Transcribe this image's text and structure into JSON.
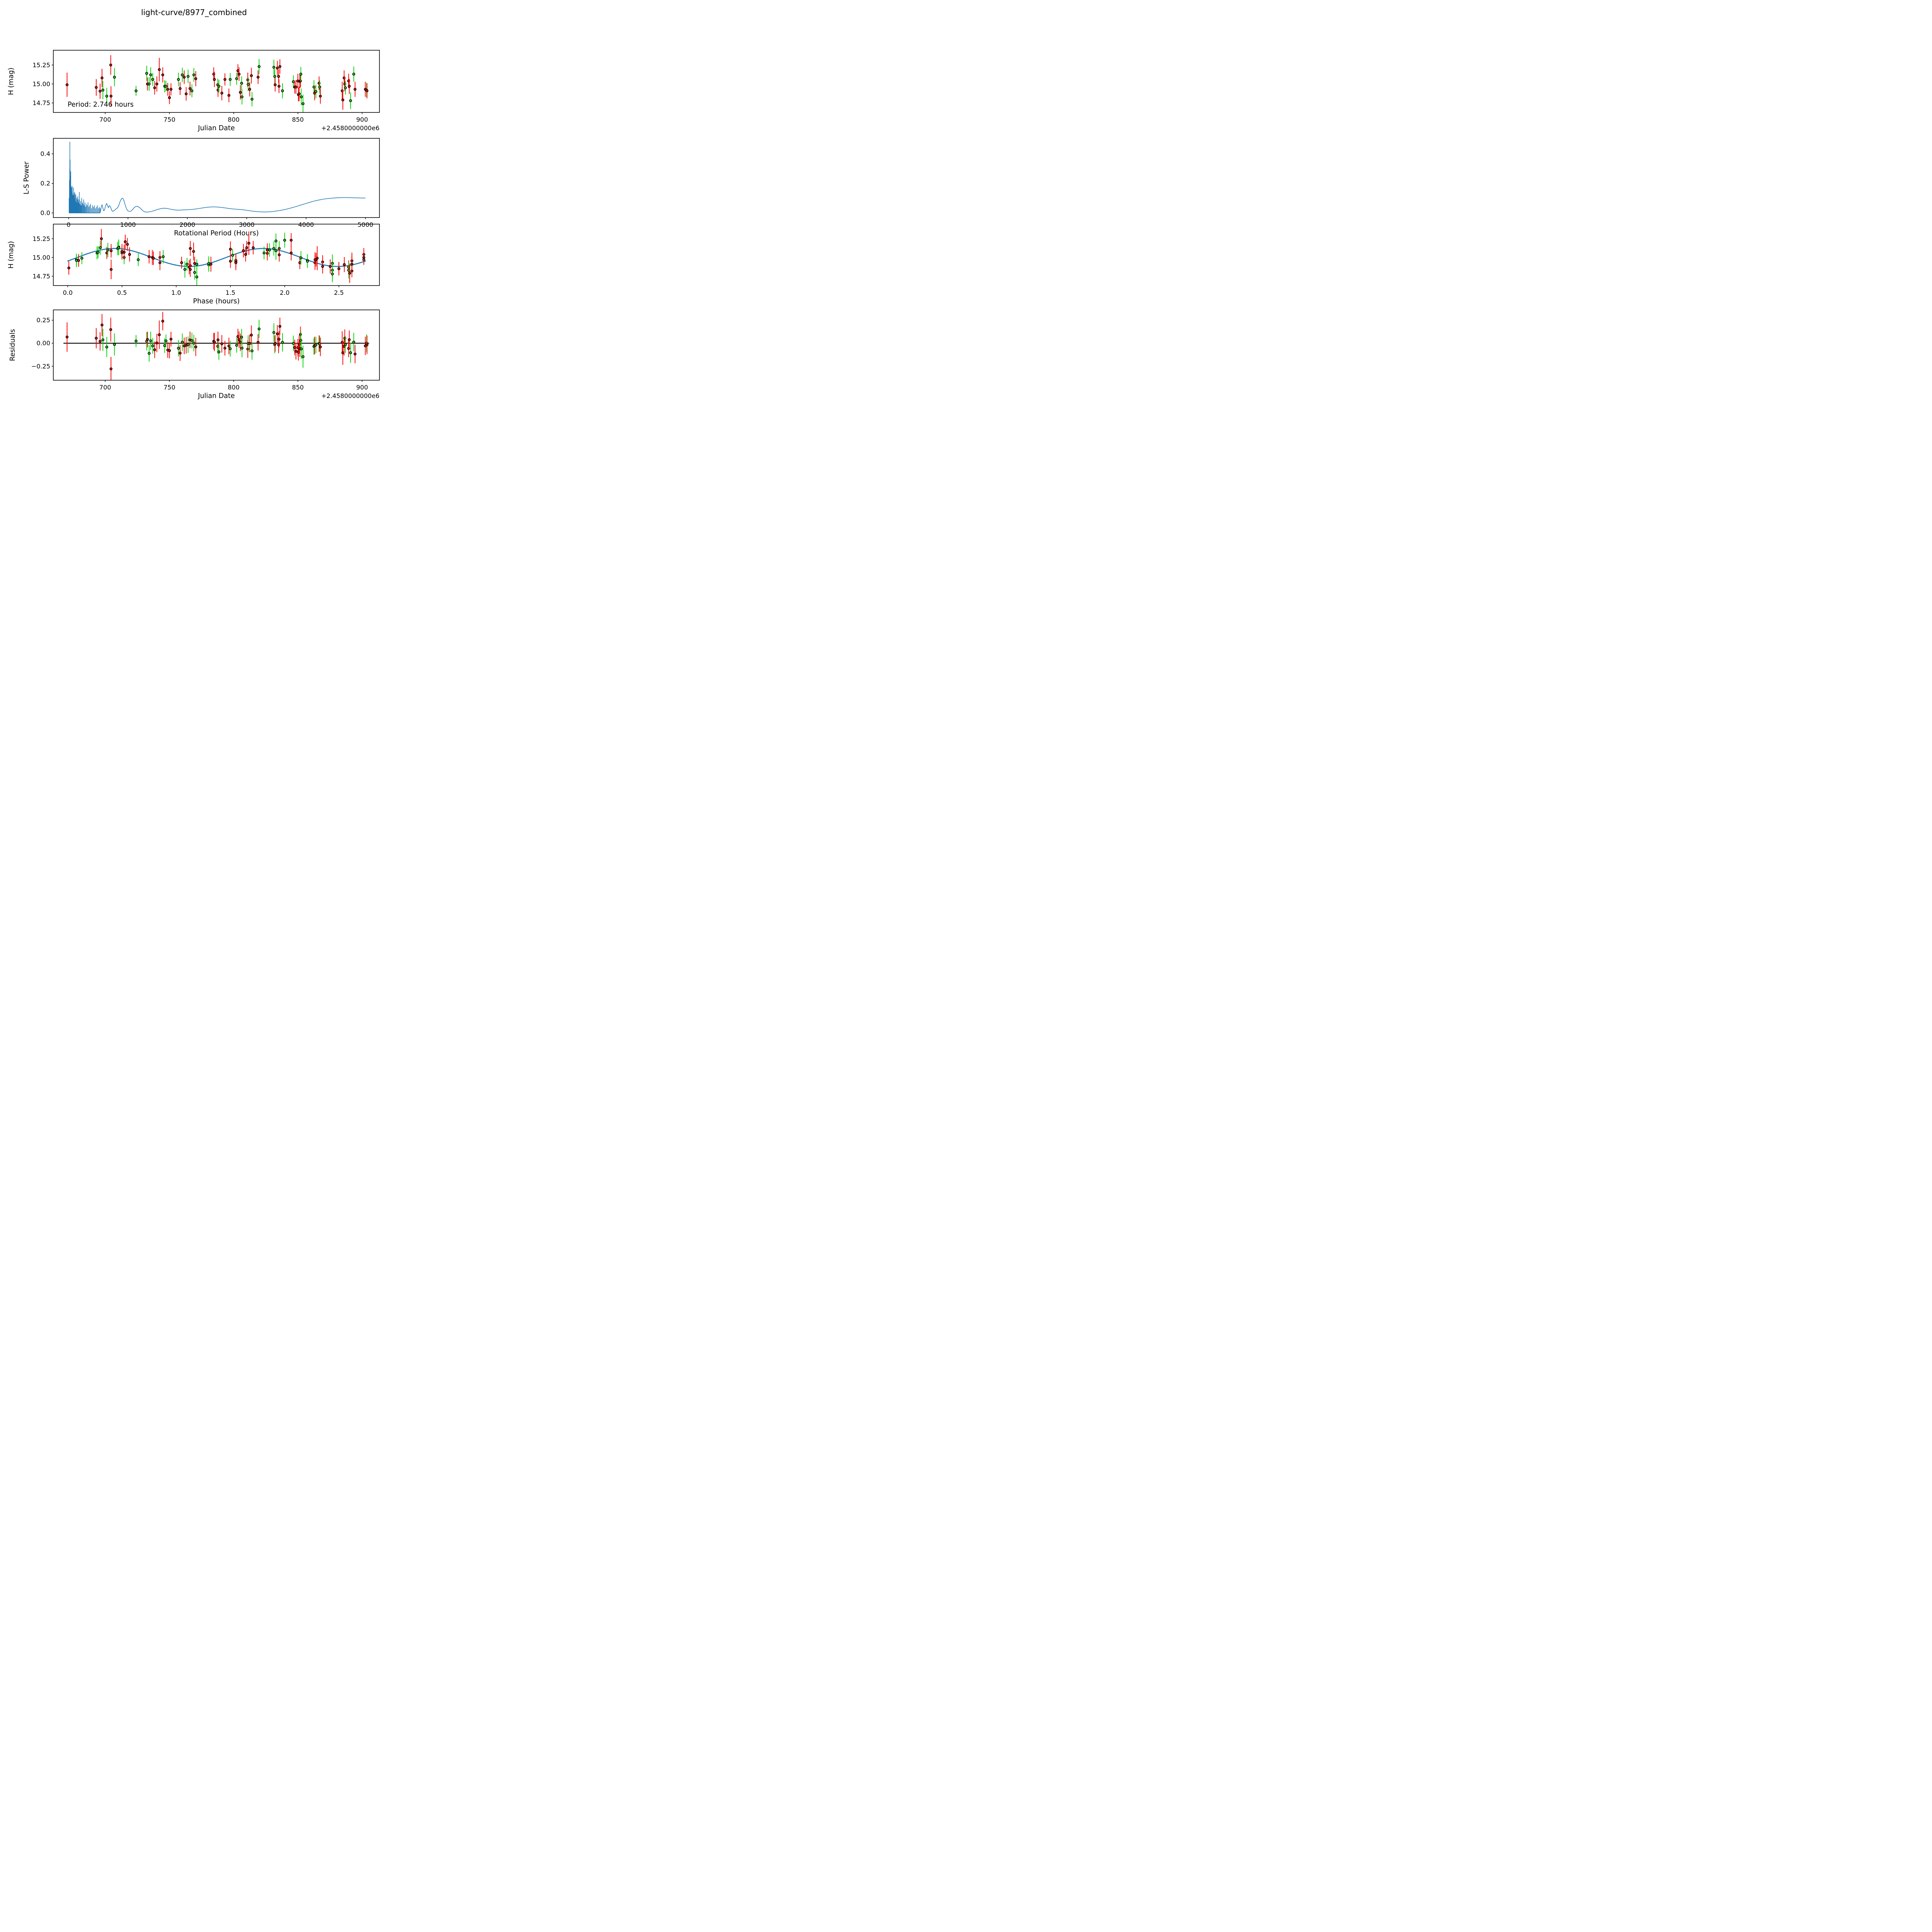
{
  "title": "light-curve/8977_combined",
  "colors": {
    "curve_blue": "#1f77b4",
    "red_marker": "#ee1111",
    "red_errorbar": "#ff0000",
    "green_marker": "#2fd32f",
    "green_errorbar": "#00d400",
    "marker_edge": "#000000",
    "zero_line": "#000000",
    "axis": "#000000"
  },
  "chart_data": [
    {
      "id": "jd-mag",
      "type": "scatter",
      "title": "",
      "xlabel": "Julian Date",
      "ylabel": "H (mag)",
      "x_offset_label": "+2.4580000000e6",
      "annotation": "Period: 2.746 hours",
      "xlim": [
        659.6,
        913.5
      ],
      "ylim": [
        15.445,
        14.625
      ],
      "xticks": [
        [
          700,
          "700"
        ],
        [
          750,
          "750"
        ],
        [
          800,
          "800"
        ],
        [
          850,
          "850"
        ],
        [
          900,
          "900"
        ]
      ],
      "yticks": [
        [
          15.25,
          "15.25"
        ],
        [
          15.0,
          "15.00"
        ],
        [
          14.75,
          "14.75"
        ]
      ],
      "grid": false,
      "series_note": "two error-bar datasets (red, green), x=JD-2458000, y=H magnitude"
    },
    {
      "id": "periodogram",
      "type": "line",
      "xlabel": "Rotational Period (Hours)",
      "ylabel": "L-S Power",
      "xlim": [
        -258,
        5236
      ],
      "ylim": [
        0.505,
        -0.031
      ],
      "xticks": [
        [
          0,
          "0"
        ],
        [
          1000,
          "1000"
        ],
        [
          2000,
          "2000"
        ],
        [
          3000,
          "3000"
        ],
        [
          4000,
          "4000"
        ],
        [
          5000,
          "5000"
        ]
      ],
      "yticks": [
        [
          0.0,
          "0.0"
        ],
        [
          0.2,
          "0.2"
        ],
        [
          0.4,
          "0.4"
        ]
      ],
      "grid": false,
      "spikes": [
        [
          8,
          0.1
        ],
        [
          11,
          0.05
        ],
        [
          13,
          0.22
        ],
        [
          15,
          0.12
        ],
        [
          18,
          0.3
        ],
        [
          20,
          0.48
        ],
        [
          22,
          0.2
        ],
        [
          25,
          0.36
        ],
        [
          27,
          0.15
        ],
        [
          30,
          0.25
        ],
        [
          33,
          0.17
        ],
        [
          36,
          0.28
        ],
        [
          39,
          0.12
        ],
        [
          43,
          0.18
        ],
        [
          47,
          0.1
        ],
        [
          50,
          0.17
        ],
        [
          54,
          0.12
        ],
        [
          58,
          0.14
        ],
        [
          62,
          0.18
        ],
        [
          66,
          0.1
        ],
        [
          70,
          0.12
        ],
        [
          74,
          0.08
        ],
        [
          78,
          0.13
        ],
        [
          83,
          0.17
        ],
        [
          88,
          0.09
        ],
        [
          93,
          0.12
        ],
        [
          98,
          0.14
        ],
        [
          104,
          0.1
        ],
        [
          110,
          0.13
        ],
        [
          116,
          0.08
        ],
        [
          123,
          0.12
        ],
        [
          130,
          0.07
        ],
        [
          137,
          0.1
        ],
        [
          145,
          0.09
        ],
        [
          153,
          0.11
        ],
        [
          161,
          0.07
        ],
        [
          170,
          0.09
        ],
        [
          180,
          0.14
        ],
        [
          190,
          0.06
        ],
        [
          200,
          0.08
        ],
        [
          210,
          0.05
        ],
        [
          220,
          0.1
        ],
        [
          231,
          0.07
        ],
        [
          242,
          0.06
        ],
        [
          253,
          0.09
        ],
        [
          264,
          0.05
        ],
        [
          275,
          0.07
        ],
        [
          287,
          0.04
        ],
        [
          299,
          0.06
        ],
        [
          312,
          0.05
        ],
        [
          326,
          0.07
        ],
        [
          340,
          0.04
        ],
        [
          355,
          0.05
        ],
        [
          370,
          0.06
        ],
        [
          386,
          0.03
        ],
        [
          402,
          0.05
        ],
        [
          418,
          0.04
        ],
        [
          434,
          0.05
        ],
        [
          450,
          0.03
        ],
        [
          467,
          0.04
        ],
        [
          484,
          0.05
        ],
        [
          500,
          0.03
        ],
        [
          516,
          0.04
        ],
        [
          530,
          0.03
        ]
      ],
      "curve": [
        [
          540,
          0.02
        ],
        [
          555,
          0.05
        ],
        [
          565,
          0.055
        ],
        [
          575,
          0.035
        ],
        [
          590,
          0.015
        ],
        [
          605,
          0.02
        ],
        [
          620,
          0.045
        ],
        [
          640,
          0.065
        ],
        [
          655,
          0.05
        ],
        [
          670,
          0.035
        ],
        [
          685,
          0.05
        ],
        [
          700,
          0.045
        ],
        [
          715,
          0.03
        ],
        [
          730,
          0.015
        ],
        [
          745,
          0.01
        ],
        [
          760,
          0.015
        ],
        [
          780,
          0.02
        ],
        [
          800,
          0.028
        ],
        [
          820,
          0.034
        ],
        [
          840,
          0.045
        ],
        [
          860,
          0.07
        ],
        [
          880,
          0.09
        ],
        [
          900,
          0.1
        ],
        [
          915,
          0.098
        ],
        [
          930,
          0.085
        ],
        [
          945,
          0.065
        ],
        [
          960,
          0.045
        ],
        [
          975,
          0.028
        ],
        [
          990,
          0.018
        ],
        [
          1010,
          0.012
        ],
        [
          1030,
          0.01
        ],
        [
          1050,
          0.013
        ],
        [
          1075,
          0.022
        ],
        [
          1100,
          0.034
        ],
        [
          1130,
          0.044
        ],
        [
          1160,
          0.045
        ],
        [
          1190,
          0.038
        ],
        [
          1220,
          0.027
        ],
        [
          1250,
          0.015
        ],
        [
          1280,
          0.008
        ],
        [
          1310,
          0.006
        ],
        [
          1350,
          0.007
        ],
        [
          1400,
          0.011
        ],
        [
          1450,
          0.017
        ],
        [
          1500,
          0.024
        ],
        [
          1550,
          0.029
        ],
        [
          1600,
          0.032
        ],
        [
          1650,
          0.031
        ],
        [
          1700,
          0.027
        ],
        [
          1750,
          0.023
        ],
        [
          1800,
          0.02
        ],
        [
          1850,
          0.019
        ],
        [
          1900,
          0.02
        ],
        [
          1950,
          0.021
        ],
        [
          2000,
          0.022
        ],
        [
          2080,
          0.024
        ],
        [
          2160,
          0.028
        ],
        [
          2240,
          0.033
        ],
        [
          2320,
          0.038
        ],
        [
          2400,
          0.041
        ],
        [
          2480,
          0.041
        ],
        [
          2560,
          0.038
        ],
        [
          2640,
          0.034
        ],
        [
          2720,
          0.029
        ],
        [
          2800,
          0.026
        ],
        [
          2880,
          0.024
        ],
        [
          2950,
          0.021
        ],
        [
          3020,
          0.017
        ],
        [
          3100,
          0.012
        ],
        [
          3180,
          0.009
        ],
        [
          3260,
          0.007
        ],
        [
          3340,
          0.007
        ],
        [
          3420,
          0.009
        ],
        [
          3500,
          0.013
        ],
        [
          3580,
          0.018
        ],
        [
          3660,
          0.025
        ],
        [
          3740,
          0.033
        ],
        [
          3820,
          0.042
        ],
        [
          3900,
          0.052
        ],
        [
          3980,
          0.062
        ],
        [
          4060,
          0.072
        ],
        [
          4140,
          0.081
        ],
        [
          4220,
          0.088
        ],
        [
          4300,
          0.094
        ],
        [
          4380,
          0.098
        ],
        [
          4460,
          0.101
        ],
        [
          4540,
          0.103
        ],
        [
          4620,
          0.104
        ],
        [
          4700,
          0.104
        ],
        [
          4780,
          0.103
        ],
        [
          4860,
          0.102
        ],
        [
          4940,
          0.101
        ],
        [
          5000,
          0.101
        ]
      ]
    },
    {
      "id": "phase-mag",
      "type": "scatter+line",
      "xlabel": "Phase (hours)",
      "ylabel": "H (mag)",
      "xlim": [
        -0.133,
        2.874
      ],
      "ylim": [
        15.445,
        14.625
      ],
      "xticks": [
        [
          0.0,
          "0.0"
        ],
        [
          0.5,
          "0.5"
        ],
        [
          1.0,
          "1.0"
        ],
        [
          1.5,
          "1.5"
        ],
        [
          2.0,
          "2.0"
        ],
        [
          2.5,
          "2.5"
        ]
      ],
      "yticks": [
        [
          15.25,
          "15.25"
        ],
        [
          15.0,
          "15.00"
        ],
        [
          14.75,
          "14.75"
        ]
      ],
      "grid": false,
      "fit": {
        "mean": 15.0,
        "amplitude": 0.12,
        "sine_period_hours": 1.373,
        "phase_zero": 0.088,
        "range": [
          0.0,
          2.75
        ]
      }
    },
    {
      "id": "residuals",
      "type": "scatter",
      "xlabel": "Julian Date",
      "ylabel": "Residuals",
      "x_offset_label": "+2.4580000000e6",
      "xlim": [
        659.6,
        913.5
      ],
      "ylim": [
        0.362,
        -0.402
      ],
      "xticks": [
        [
          700,
          "700"
        ],
        [
          750,
          "750"
        ],
        [
          800,
          "800"
        ],
        [
          850,
          "850"
        ],
        [
          900,
          "900"
        ]
      ],
      "yticks": [
        [
          0.25,
          "0.25"
        ],
        [
          0.0,
          "0.00"
        ],
        [
          -0.25,
          "−0.25"
        ]
      ],
      "grid": false,
      "zero_line_span": [
        667.5,
        905.5
      ]
    }
  ],
  "observations": [
    [
      670.3,
      2.3,
      14.99,
      0.16,
      "r"
    ],
    [
      693.0,
      2.62,
      14.955,
      0.11,
      "r"
    ],
    [
      696.0,
      2.55,
      14.905,
      0.1,
      "r"
    ],
    [
      697.5,
      1.16,
      15.08,
      0.12,
      "r"
    ],
    [
      698.2,
      2.44,
      14.92,
      0.12,
      "g"
    ],
    [
      701.2,
      1.08,
      14.84,
      0.11,
      "g"
    ],
    [
      704.3,
      0.31,
      15.25,
      0.13,
      "r"
    ],
    [
      704.5,
      0.4,
      14.84,
      0.13,
      "r"
    ],
    [
      707.2,
      1.92,
      15.09,
      0.12,
      "g"
    ],
    [
      724.0,
      1.19,
      14.91,
      0.065,
      "g"
    ],
    [
      732.3,
      0.47,
      15.14,
      0.1,
      "g"
    ],
    [
      732.9,
      0.85,
      15.0,
      0.085,
      "r"
    ],
    [
      734.2,
      0.52,
      15.0,
      0.09,
      "g"
    ],
    [
      735.4,
      1.95,
      15.12,
      0.1,
      "g"
    ],
    [
      737.0,
      0.27,
      15.06,
      0.085,
      "g"
    ],
    [
      738.5,
      1.5,
      14.95,
      0.09,
      "r"
    ],
    [
      740.2,
      0.78,
      15.0,
      0.1,
      "r"
    ],
    [
      742.1,
      1.67,
      15.19,
      0.155,
      "r"
    ],
    [
      744.8,
      1.13,
      15.12,
      0.1,
      "r"
    ],
    [
      746.3,
      0.08,
      14.97,
      0.08,
      "g"
    ],
    [
      747.3,
      2.73,
      14.97,
      0.07,
      "g"
    ],
    [
      748.7,
      2.14,
      14.93,
      0.085,
      "r"
    ],
    [
      750.0,
      2.62,
      14.82,
      0.085,
      "r"
    ],
    [
      751.2,
      1.05,
      14.93,
      0.08,
      "r"
    ],
    [
      757.0,
      0.5,
      15.06,
      0.09,
      "g"
    ],
    [
      758.3,
      1.55,
      14.94,
      0.085,
      "r"
    ],
    [
      760.0,
      1.9,
      15.12,
      0.095,
      "g"
    ],
    [
      761.5,
      0.4,
      15.09,
      0.09,
      "r"
    ],
    [
      763.0,
      2.59,
      14.87,
      0.09,
      "r"
    ],
    [
      764.5,
      1.86,
      15.1,
      0.09,
      "g"
    ],
    [
      766.0,
      2.35,
      14.94,
      0.09,
      "r"
    ],
    [
      767.5,
      1.1,
      14.91,
      0.085,
      "g"
    ],
    [
      769.0,
      0.46,
      15.12,
      0.09,
      "g"
    ],
    [
      770.5,
      0.52,
      15.07,
      0.1,
      "r"
    ],
    [
      784.5,
      1.71,
      15.13,
      0.09,
      "r"
    ],
    [
      785.0,
      2.06,
      15.06,
      0.1,
      "r"
    ],
    [
      787.6,
      0.13,
      14.99,
      0.08,
      "g"
    ],
    [
      787.8,
      1.17,
      14.92,
      0.09,
      "r"
    ],
    [
      788.5,
      0.65,
      14.97,
      0.085,
      "g"
    ],
    [
      790.8,
      2.42,
      14.88,
      0.095,
      "r"
    ],
    [
      793.2,
      0.36,
      15.06,
      0.08,
      "r"
    ],
    [
      796.3,
      2.5,
      14.85,
      0.09,
      "r"
    ],
    [
      797.3,
      1.81,
      15.06,
      0.085,
      "g"
    ],
    [
      802.3,
      0.28,
      15.07,
      0.08,
      "g"
    ],
    [
      803.3,
      0.55,
      15.175,
      0.085,
      "r"
    ],
    [
      804.2,
      1.65,
      15.13,
      0.09,
      "r"
    ],
    [
      805.2,
      1.13,
      14.89,
      0.095,
      "r"
    ],
    [
      806.2,
      0.88,
      15.01,
      0.09,
      "g"
    ],
    [
      806.5,
      2.44,
      14.83,
      0.1,
      "g"
    ],
    [
      811.0,
      1.84,
      15.055,
      0.095,
      "r"
    ],
    [
      811.3,
      2.15,
      14.995,
      0.09,
      "g"
    ],
    [
      812.5,
      2.28,
      14.93,
      0.095,
      "r"
    ],
    [
      813.8,
      1.5,
      15.11,
      0.105,
      "r"
    ],
    [
      814.3,
      1.17,
      14.8,
      0.095,
      "g"
    ],
    [
      819.0,
      1.62,
      15.09,
      0.09,
      "r"
    ],
    [
      819.8,
      2.0,
      15.23,
      0.1,
      "g"
    ],
    [
      831.3,
      1.92,
      15.22,
      0.1,
      "g"
    ],
    [
      832.0,
      0.37,
      15.1,
      0.095,
      "g"
    ],
    [
      832.3,
      0.79,
      14.99,
      0.09,
      "r"
    ],
    [
      834.0,
      0.53,
      15.21,
      0.095,
      "r"
    ],
    [
      835.0,
      1.84,
      15.1,
      0.09,
      "r"
    ],
    [
      835.3,
      2.29,
      14.97,
      0.09,
      "r"
    ],
    [
      836.0,
      2.06,
      15.23,
      0.095,
      "r"
    ],
    [
      838.0,
      2.62,
      14.91,
      0.1,
      "g"
    ],
    [
      846.5,
      1.52,
      15.03,
      0.085,
      "g"
    ],
    [
      847.5,
      0.1,
      14.96,
      0.085,
      "r"
    ],
    [
      848.5,
      1.55,
      14.96,
      0.09,
      "r"
    ],
    [
      850.0,
      1.64,
      15.04,
      0.095,
      "r"
    ],
    [
      850.4,
      0.01,
      14.86,
      0.09,
      "r"
    ],
    [
      851.0,
      1.12,
      14.87,
      0.095,
      "r"
    ],
    [
      851.5,
      1.95,
      15.035,
      0.09,
      "r"
    ],
    [
      852.0,
      2.73,
      15.04,
      0.085,
      "r"
    ],
    [
      852.3,
      0.3,
      15.13,
      0.095,
      "g"
    ],
    [
      852.6,
      2.59,
      14.83,
      0.11,
      "g"
    ],
    [
      854.0,
      1.19,
      14.74,
      0.12,
      "g"
    ],
    [
      862.5,
      0.08,
      14.96,
      0.09,
      "g"
    ],
    [
      863.0,
      2.35,
      14.88,
      0.095,
      "r"
    ],
    [
      864.0,
      1.3,
      14.9,
      0.09,
      "g"
    ],
    [
      866.5,
      0.75,
      15.01,
      0.09,
      "r"
    ],
    [
      867.0,
      2.21,
      14.96,
      0.085,
      "g"
    ],
    [
      867.5,
      1.13,
      14.84,
      0.1,
      "r"
    ],
    [
      884.5,
      2.62,
      14.91,
      0.12,
      "r"
    ],
    [
      885.0,
      2.6,
      14.79,
      0.13,
      "r"
    ],
    [
      886.0,
      0.5,
      15.08,
      0.1,
      "r"
    ],
    [
      886.5,
      2.73,
      15.0,
      0.095,
      "r"
    ],
    [
      887.0,
      2.21,
      14.95,
      0.09,
      "g"
    ],
    [
      889.5,
      0.57,
      15.04,
      0.095,
      "r"
    ],
    [
      890.0,
      2.28,
      14.97,
      0.1,
      "r"
    ],
    [
      891.0,
      2.44,
      14.78,
      0.11,
      "g"
    ],
    [
      893.5,
      0.47,
      15.13,
      0.1,
      "g"
    ],
    [
      894.5,
      1.55,
      14.93,
      0.1,
      "r"
    ],
    [
      902.5,
      0.85,
      14.93,
      0.1,
      "r"
    ],
    [
      903.5,
      1.3,
      14.92,
      0.095,
      "g"
    ],
    [
      903.8,
      1.32,
      14.91,
      0.1,
      "r"
    ]
  ]
}
